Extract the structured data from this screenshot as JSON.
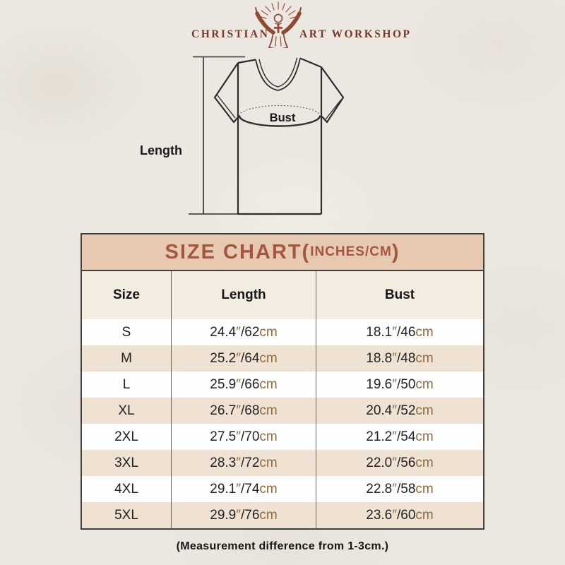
{
  "brand": {
    "name_left": "CHRISTIAN",
    "name_right": "ART WORKSHOP",
    "icon": "jesus-with-rays-icon",
    "text_color": "#78392a"
  },
  "diagram": {
    "length_label": "Length",
    "bust_label": "Bust"
  },
  "size_chart": {
    "title_open": "SIZE CHART(",
    "title_inner": "INCHES/CM",
    "title_close": ")",
    "title_color": "#a4573f",
    "title_bg": "#e7c9b2",
    "alt_row_color": "#efe2d2",
    "unit_color": "#8d6a3f",
    "inch_mark": "″",
    "cm_label": "cm",
    "columns": [
      "Size",
      "Length",
      "Bust"
    ],
    "rows": [
      {
        "size": "S",
        "length_in": "24.4",
        "length_cm": "62",
        "bust_in": "18.1",
        "bust_cm": "46"
      },
      {
        "size": "M",
        "length_in": "25.2",
        "length_cm": "64",
        "bust_in": "18.8",
        "bust_cm": "48"
      },
      {
        "size": "L",
        "length_in": "25.9",
        "length_cm": "66",
        "bust_in": "19.6",
        "bust_cm": "50"
      },
      {
        "size": "XL",
        "length_in": "26.7",
        "length_cm": "68",
        "bust_in": "20.4",
        "bust_cm": "52"
      },
      {
        "size": "2XL",
        "length_in": "27.5",
        "length_cm": "70",
        "bust_in": "21.2",
        "bust_cm": "54"
      },
      {
        "size": "3XL",
        "length_in": "28.3",
        "length_cm": "72",
        "bust_in": "22.0",
        "bust_cm": "56"
      },
      {
        "size": "4XL",
        "length_in": "29.1",
        "length_cm": "74",
        "bust_in": "22.8",
        "bust_cm": "58"
      },
      {
        "size": "5XL",
        "length_in": "29.9",
        "length_cm": "76",
        "bust_in": "23.6",
        "bust_cm": "60"
      }
    ]
  },
  "footer": {
    "note": "(Measurement difference from 1-3cm.)"
  },
  "chart_data": {
    "type": "table",
    "title": "SIZE CHART(INCHES/CM)",
    "columns": [
      "Size",
      "Length",
      "Bust"
    ],
    "rows": [
      [
        "S",
        "24.4″/62cm",
        "18.1″/46cm"
      ],
      [
        "M",
        "25.2″/64cm",
        "18.8″/48cm"
      ],
      [
        "L",
        "25.9″/66cm",
        "19.6″/50cm"
      ],
      [
        "XL",
        "26.7″/68cm",
        "20.4″/52cm"
      ],
      [
        "2XL",
        "27.5″/70cm",
        "21.2″/54cm"
      ],
      [
        "3XL",
        "28.3″/72cm",
        "22.0″/56cm"
      ],
      [
        "4XL",
        "29.1″/74cm",
        "22.8″/58cm"
      ],
      [
        "5XL",
        "29.9″/76cm",
        "23.6″/60cm"
      ]
    ],
    "note": "(Measurement difference from 1-3cm.)"
  }
}
